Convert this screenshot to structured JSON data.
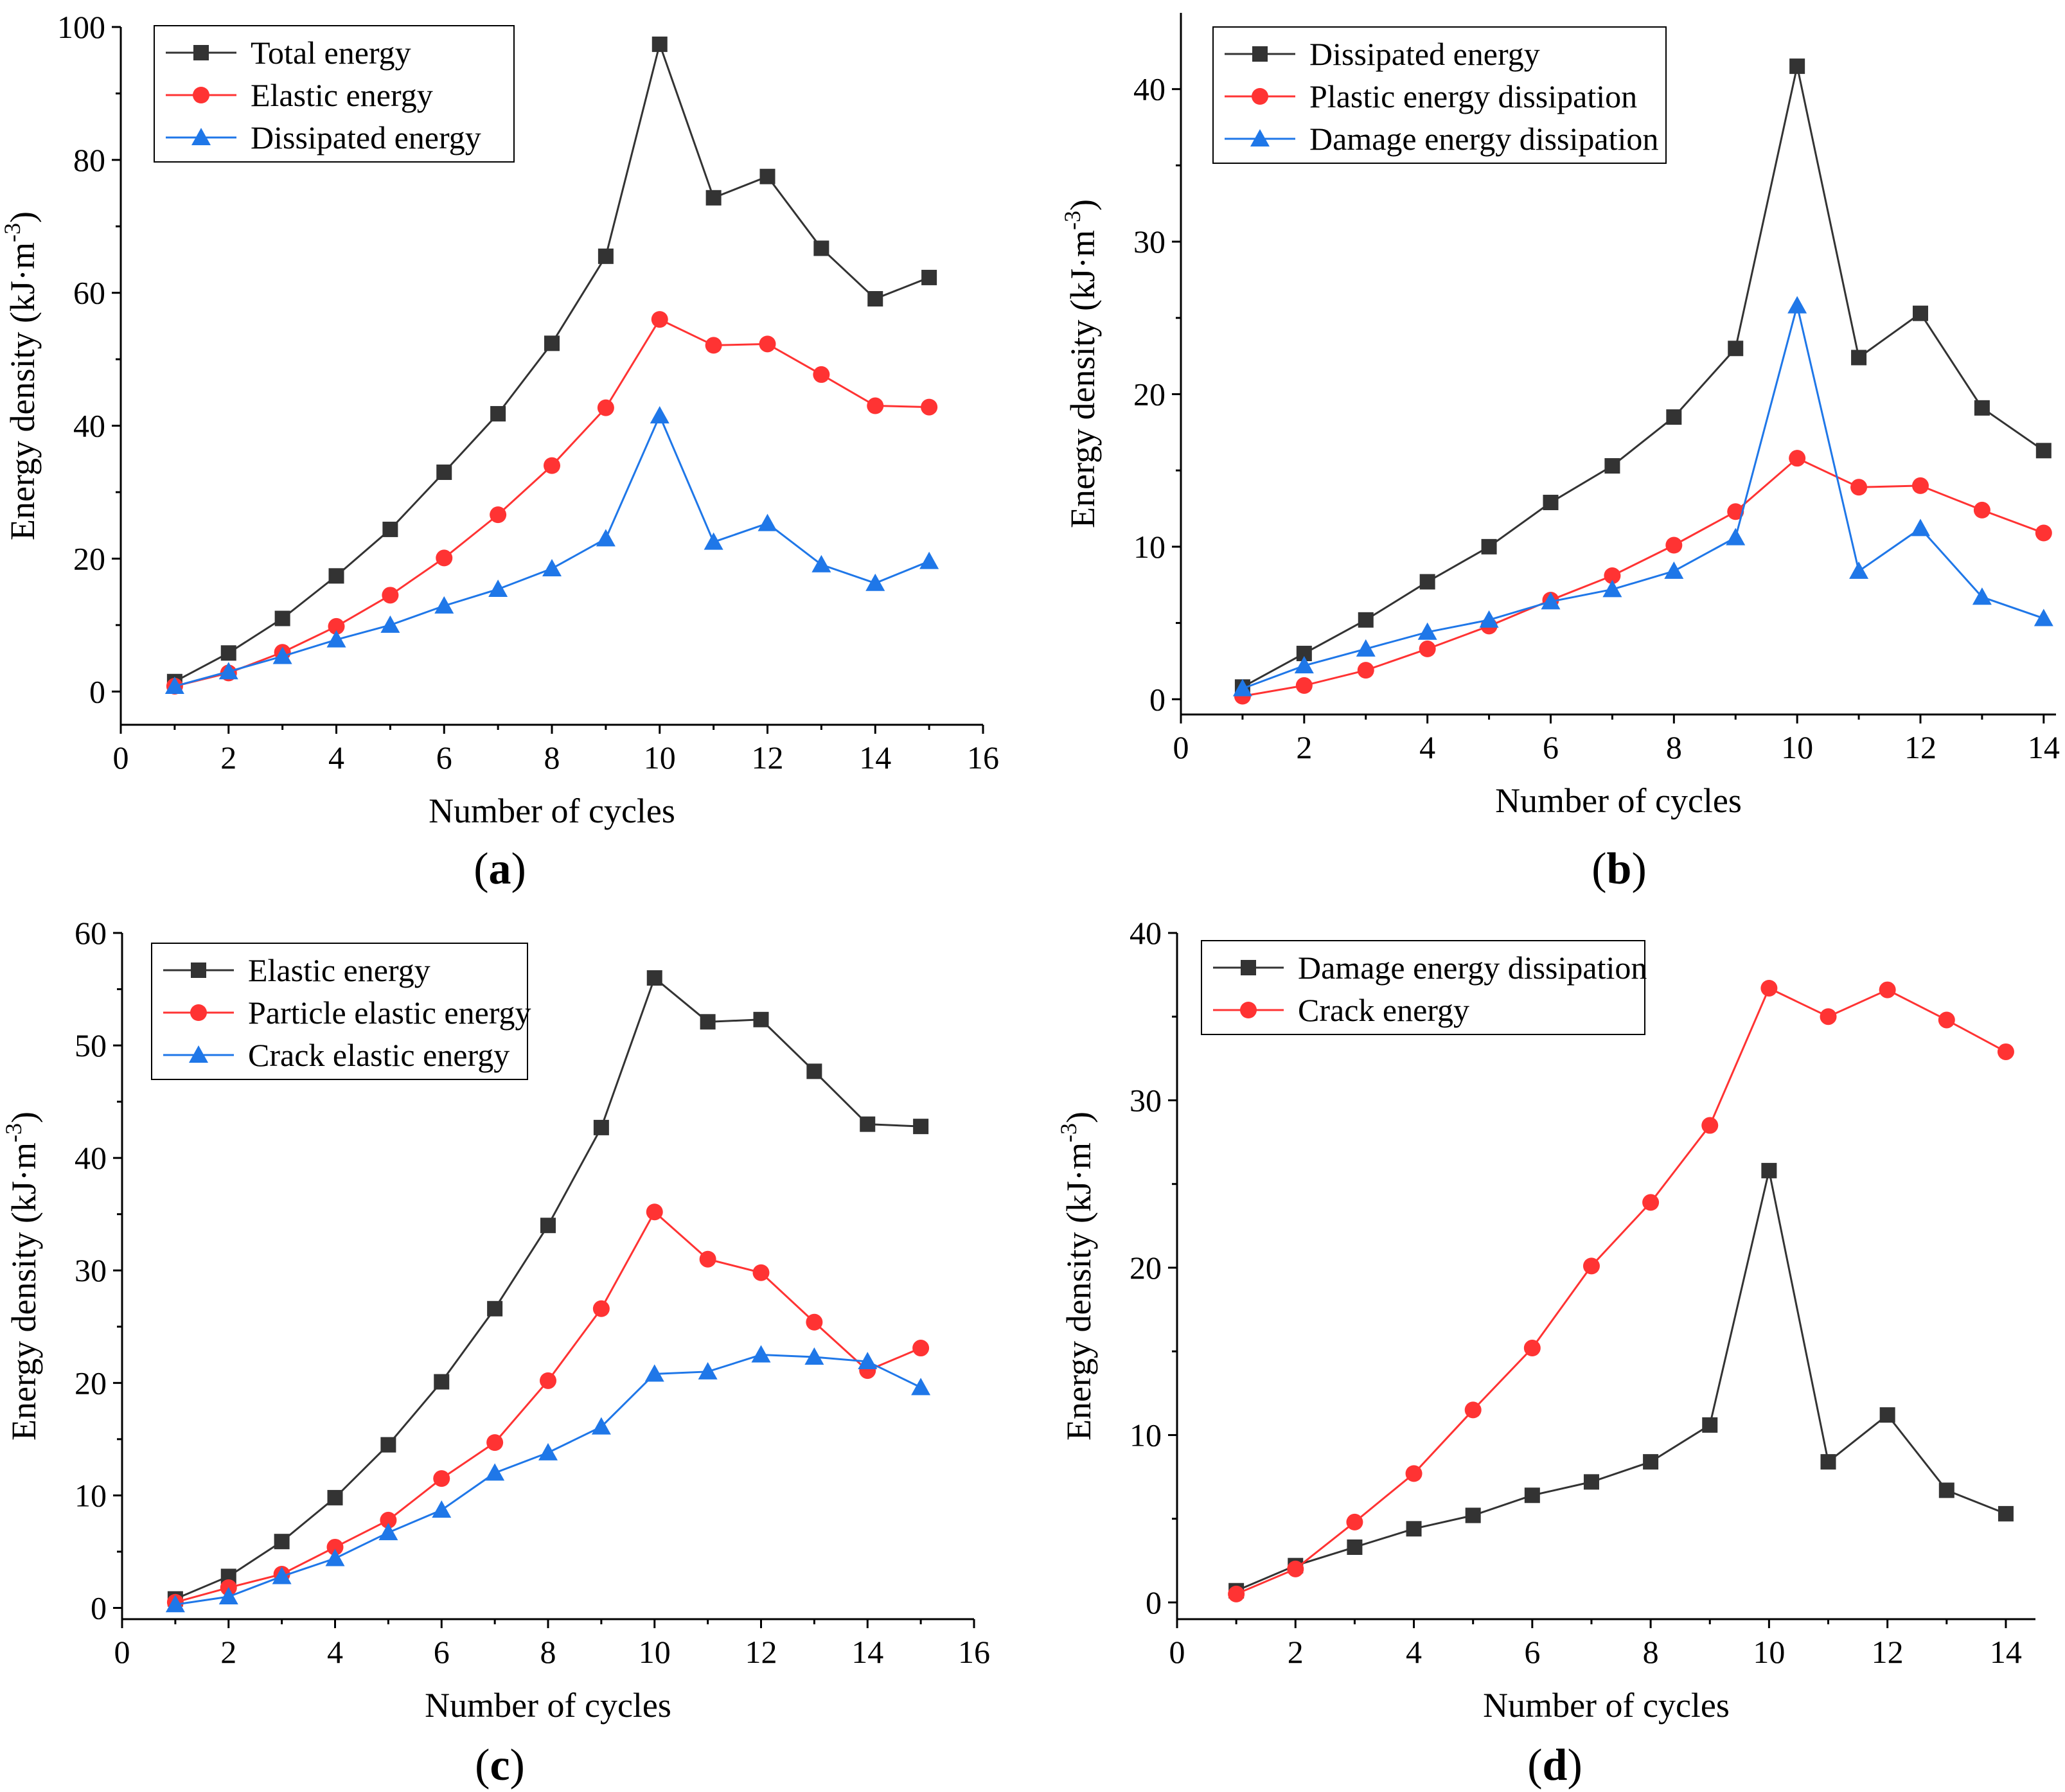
{
  "chart_data": [
    {
      "type": "line",
      "panel_label": "(a)",
      "panel_letter": "a",
      "xlabel": "Number of cycles",
      "ylabel_base": "Energy density (kJ·m",
      "ylabel_sup": "-3",
      "ylabel_close": ")",
      "xlim": [
        0,
        16
      ],
      "ylim": [
        -5,
        100
      ],
      "xticks": [
        0,
        2,
        4,
        6,
        8,
        10,
        12,
        14,
        16
      ],
      "yticks": [
        0,
        20,
        40,
        60,
        80,
        100
      ],
      "legend_position": "top-left",
      "x": [
        1,
        2,
        3,
        4,
        5,
        6,
        7,
        8,
        9,
        10,
        11,
        12,
        13,
        14,
        15
      ],
      "series": [
        {
          "name": "Total energy",
          "color": "#333333",
          "marker": "square",
          "values": [
            1.5,
            5.8,
            11.0,
            17.4,
            24.4,
            33.0,
            41.8,
            52.4,
            65.5,
            97.4,
            74.3,
            77.5,
            66.7,
            59.1,
            62.3
          ]
        },
        {
          "name": "Elastic energy",
          "color": "#ff3333",
          "marker": "circle",
          "values": [
            0.8,
            2.8,
            5.9,
            9.8,
            14.5,
            20.1,
            26.6,
            34.0,
            42.7,
            56.0,
            52.1,
            52.3,
            47.7,
            43.0,
            42.8
          ]
        },
        {
          "name": "Dissipated energy",
          "color": "#1f77e8",
          "marker": "triangle",
          "values": [
            0.8,
            3.0,
            5.3,
            7.8,
            10.0,
            12.9,
            15.4,
            18.5,
            23.0,
            41.5,
            22.5,
            25.3,
            19.1,
            16.3,
            19.6
          ]
        }
      ]
    },
    {
      "type": "line",
      "panel_label": "(b)",
      "panel_letter": "b",
      "xlabel": "Number of cycles",
      "ylabel_base": "Energy density (kJ·m",
      "ylabel_sup": "-3",
      "ylabel_close": ")",
      "xlim": [
        0,
        14.2
      ],
      "ylim": [
        -1,
        45
      ],
      "xticks": [
        0,
        2,
        4,
        6,
        8,
        10,
        12,
        14
      ],
      "yticks": [
        0,
        10,
        20,
        30,
        40
      ],
      "legend_position": "top-left",
      "x": [
        1,
        2,
        3,
        4,
        5,
        6,
        7,
        8,
        9,
        10,
        11,
        12,
        13,
        14
      ],
      "series": [
        {
          "name": "Dissipated energy",
          "color": "#333333",
          "marker": "square",
          "values": [
            0.8,
            3.0,
            5.2,
            7.7,
            10.0,
            12.9,
            15.3,
            18.5,
            23.0,
            41.5,
            22.4,
            25.3,
            19.1,
            16.3
          ]
        },
        {
          "name": "Plastic energy dissipation",
          "color": "#ff3333",
          "marker": "circle",
          "values": [
            0.2,
            0.9,
            1.9,
            3.3,
            4.8,
            6.5,
            8.1,
            10.1,
            12.3,
            15.8,
            13.9,
            14.0,
            12.4,
            10.9
          ]
        },
        {
          "name": "Damage energy dissipation",
          "color": "#1f77e8",
          "marker": "triangle",
          "values": [
            0.7,
            2.2,
            3.3,
            4.4,
            5.2,
            6.4,
            7.2,
            8.4,
            10.6,
            25.8,
            8.4,
            11.2,
            6.7,
            5.3
          ]
        }
      ]
    },
    {
      "type": "line",
      "panel_label": "(c)",
      "panel_letter": "c",
      "xlabel": "Number of cycles",
      "ylabel_base": "Energy density (kJ·m",
      "ylabel_sup": "-3",
      "ylabel_close": ")",
      "xlim": [
        0,
        16
      ],
      "ylim": [
        -1,
        60
      ],
      "xticks": [
        0,
        2,
        4,
        6,
        8,
        10,
        12,
        14,
        16
      ],
      "yticks": [
        0,
        10,
        20,
        30,
        40,
        50,
        60
      ],
      "legend_position": "top-left",
      "x": [
        1,
        2,
        3,
        4,
        5,
        6,
        7,
        8,
        9,
        10,
        11,
        12,
        13,
        14,
        15
      ],
      "series": [
        {
          "name": "Elastic energy",
          "color": "#333333",
          "marker": "square",
          "values": [
            0.8,
            2.8,
            5.9,
            9.8,
            14.5,
            20.1,
            26.6,
            34.0,
            42.7,
            56.0,
            52.1,
            52.3,
            47.7,
            43.0,
            42.8
          ]
        },
        {
          "name": "Particle elastic energy",
          "color": "#ff3333",
          "marker": "circle",
          "values": [
            0.5,
            1.8,
            3.0,
            5.4,
            7.8,
            11.5,
            14.7,
            20.2,
            26.6,
            35.2,
            31.0,
            29.8,
            25.4,
            21.1,
            23.1
          ]
        },
        {
          "name": "Crack elastic energy",
          "color": "#1f77e8",
          "marker": "triangle",
          "values": [
            0.3,
            1.0,
            2.8,
            4.4,
            6.7,
            8.7,
            12.0,
            13.8,
            16.1,
            20.8,
            21.0,
            22.5,
            22.3,
            21.9,
            19.6
          ]
        }
      ]
    },
    {
      "type": "line",
      "panel_label": "(d)",
      "panel_letter": "d",
      "xlabel": "Number of cycles",
      "ylabel_base": "Energy density (kJ·m",
      "ylabel_sup": "-3",
      "ylabel_close": ")",
      "xlim": [
        0,
        14.5
      ],
      "ylim": [
        -1,
        40
      ],
      "xticks": [
        0,
        2,
        4,
        6,
        8,
        10,
        12,
        14
      ],
      "yticks": [
        0,
        10,
        20,
        30,
        40
      ],
      "legend_position": "top-left",
      "x": [
        1,
        2,
        3,
        4,
        5,
        6,
        7,
        8,
        9,
        10,
        11,
        12,
        13,
        14
      ],
      "series": [
        {
          "name": "Damage energy dissipation",
          "color": "#333333",
          "marker": "square",
          "values": [
            0.7,
            2.2,
            3.3,
            4.4,
            5.2,
            6.4,
            7.2,
            8.4,
            10.6,
            25.8,
            8.4,
            11.2,
            6.7,
            5.3
          ]
        },
        {
          "name": "Crack energy",
          "color": "#ff3333",
          "marker": "circle",
          "values": [
            0.5,
            2.0,
            4.8,
            7.7,
            11.5,
            15.2,
            20.1,
            23.9,
            28.5,
            36.7,
            35.0,
            36.6,
            34.8,
            32.9
          ]
        }
      ]
    }
  ]
}
